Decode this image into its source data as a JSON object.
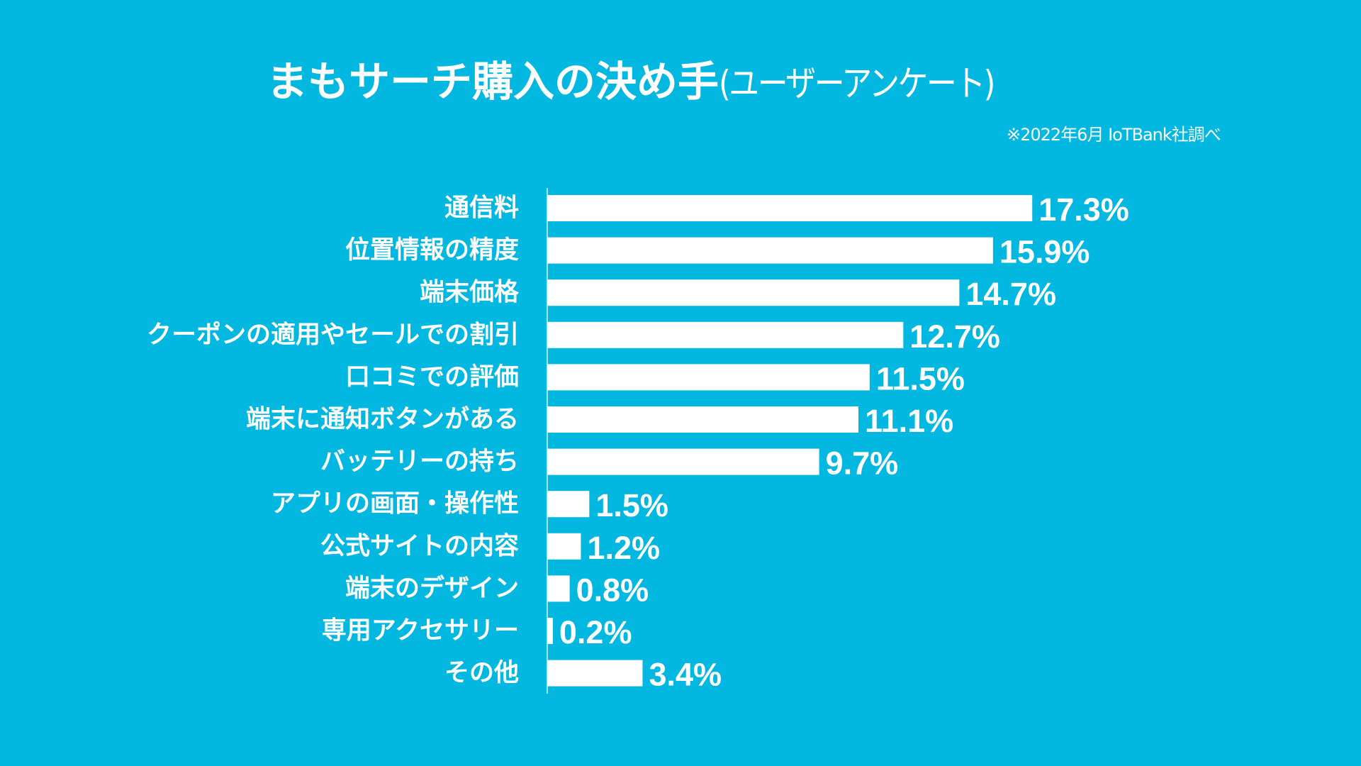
{
  "colors": {
    "background": "#02B8E0",
    "bar": "#FFFFFF",
    "text": "#FFFFFF",
    "axis": "#D9F2FA"
  },
  "chart_data": {
    "type": "bar",
    "orientation": "horizontal",
    "title": "まもサーチ購入の決め手",
    "title_suffix": "(ユーザーアンケート)",
    "subtitle": "※2022年6月 IoTBank社調べ",
    "xlabel": "",
    "ylabel": "",
    "grid": false,
    "legend": "none",
    "value_unit": "%",
    "categories": [
      "通信料",
      "位置情報の精度",
      "端末価格",
      "クーポンの適用やセールでの割引",
      "口コミでの評価",
      "端末に通知ボタンがある",
      "バッテリーの持ち",
      "アプリの画面・操作性",
      "公式サイトの内容",
      "端末のデザイン",
      "専用アクセサリー",
      "その他"
    ],
    "values": [
      17.3,
      15.9,
      14.7,
      12.7,
      11.5,
      11.1,
      9.7,
      1.5,
      1.2,
      0.8,
      0.2,
      3.4
    ],
    "value_labels": [
      "17.3%",
      "15.9%",
      "14.7%",
      "12.7%",
      "11.5%",
      "11.1%",
      "9.7%",
      "1.5%",
      "1.2%",
      "0.8%",
      "0.2%",
      "3.4%"
    ]
  }
}
